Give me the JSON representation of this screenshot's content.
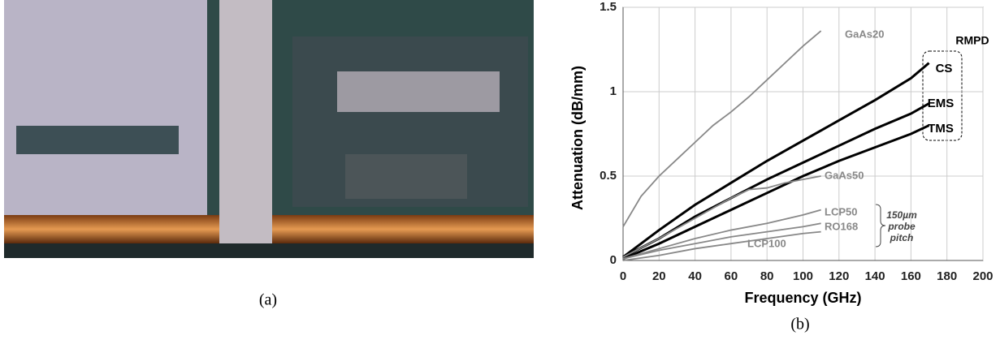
{
  "figure_a": {
    "caption": "(a)"
  },
  "chart_data": {
    "type": "line",
    "caption": "(b)",
    "x_label": "Frequency (GHz)",
    "y_label": "Attenuation (dB/mm)",
    "xlim": [
      0,
      200
    ],
    "xticks": [
      0,
      20,
      40,
      60,
      80,
      100,
      120,
      140,
      160,
      180,
      200
    ],
    "ylim": [
      0,
      1.5
    ],
    "yticks": [
      0,
      0.5,
      1,
      1.5
    ],
    "grid": true,
    "annotations": [
      "RMPD",
      "150µm",
      "probe",
      "pitch"
    ],
    "series": [
      {
        "name": "GaAs20",
        "color": "#888888",
        "x": [
          0,
          10,
          20,
          30,
          40,
          50,
          60,
          70,
          80,
          90,
          100,
          110
        ],
        "values": [
          0.2,
          0.38,
          0.5,
          0.6,
          0.7,
          0.8,
          0.88,
          0.97,
          1.07,
          1.17,
          1.27,
          1.36
        ]
      },
      {
        "name": "CS",
        "color": "#000000",
        "x": [
          0,
          20,
          40,
          60,
          80,
          100,
          120,
          140,
          160,
          170
        ],
        "values": [
          0.02,
          0.18,
          0.33,
          0.46,
          0.59,
          0.71,
          0.83,
          0.95,
          1.08,
          1.17
        ]
      },
      {
        "name": "EMS",
        "color": "#000000",
        "x": [
          0,
          20,
          40,
          60,
          80,
          100,
          120,
          140,
          160,
          170
        ],
        "values": [
          0.02,
          0.13,
          0.26,
          0.37,
          0.48,
          0.58,
          0.68,
          0.78,
          0.87,
          0.93
        ]
      },
      {
        "name": "TMS",
        "color": "#000000",
        "x": [
          0,
          20,
          40,
          60,
          80,
          100,
          120,
          140,
          160,
          170
        ],
        "values": [
          0.01,
          0.1,
          0.2,
          0.3,
          0.4,
          0.5,
          0.59,
          0.67,
          0.75,
          0.8
        ]
      },
      {
        "name": "GaAs50",
        "color": "#888888",
        "x": [
          0,
          20,
          40,
          60,
          70,
          80,
          90,
          100,
          110
        ],
        "values": [
          0.02,
          0.13,
          0.25,
          0.37,
          0.42,
          0.43,
          0.46,
          0.48,
          0.5
        ]
      },
      {
        "name": "LCP50",
        "color": "#888888",
        "x": [
          0,
          20,
          40,
          60,
          80,
          100,
          110
        ],
        "values": [
          0.01,
          0.07,
          0.13,
          0.18,
          0.22,
          0.27,
          0.3
        ]
      },
      {
        "name": "RO168",
        "color": "#888888",
        "x": [
          0,
          20,
          40,
          60,
          80,
          100,
          110
        ],
        "values": [
          0.01,
          0.06,
          0.1,
          0.14,
          0.17,
          0.2,
          0.22
        ]
      },
      {
        "name": "LCP100",
        "color": "#888888",
        "x": [
          0,
          20,
          40,
          60,
          80,
          100,
          110
        ],
        "values": [
          0,
          0.03,
          0.07,
          0.1,
          0.13,
          0.16,
          0.17
        ]
      }
    ]
  }
}
